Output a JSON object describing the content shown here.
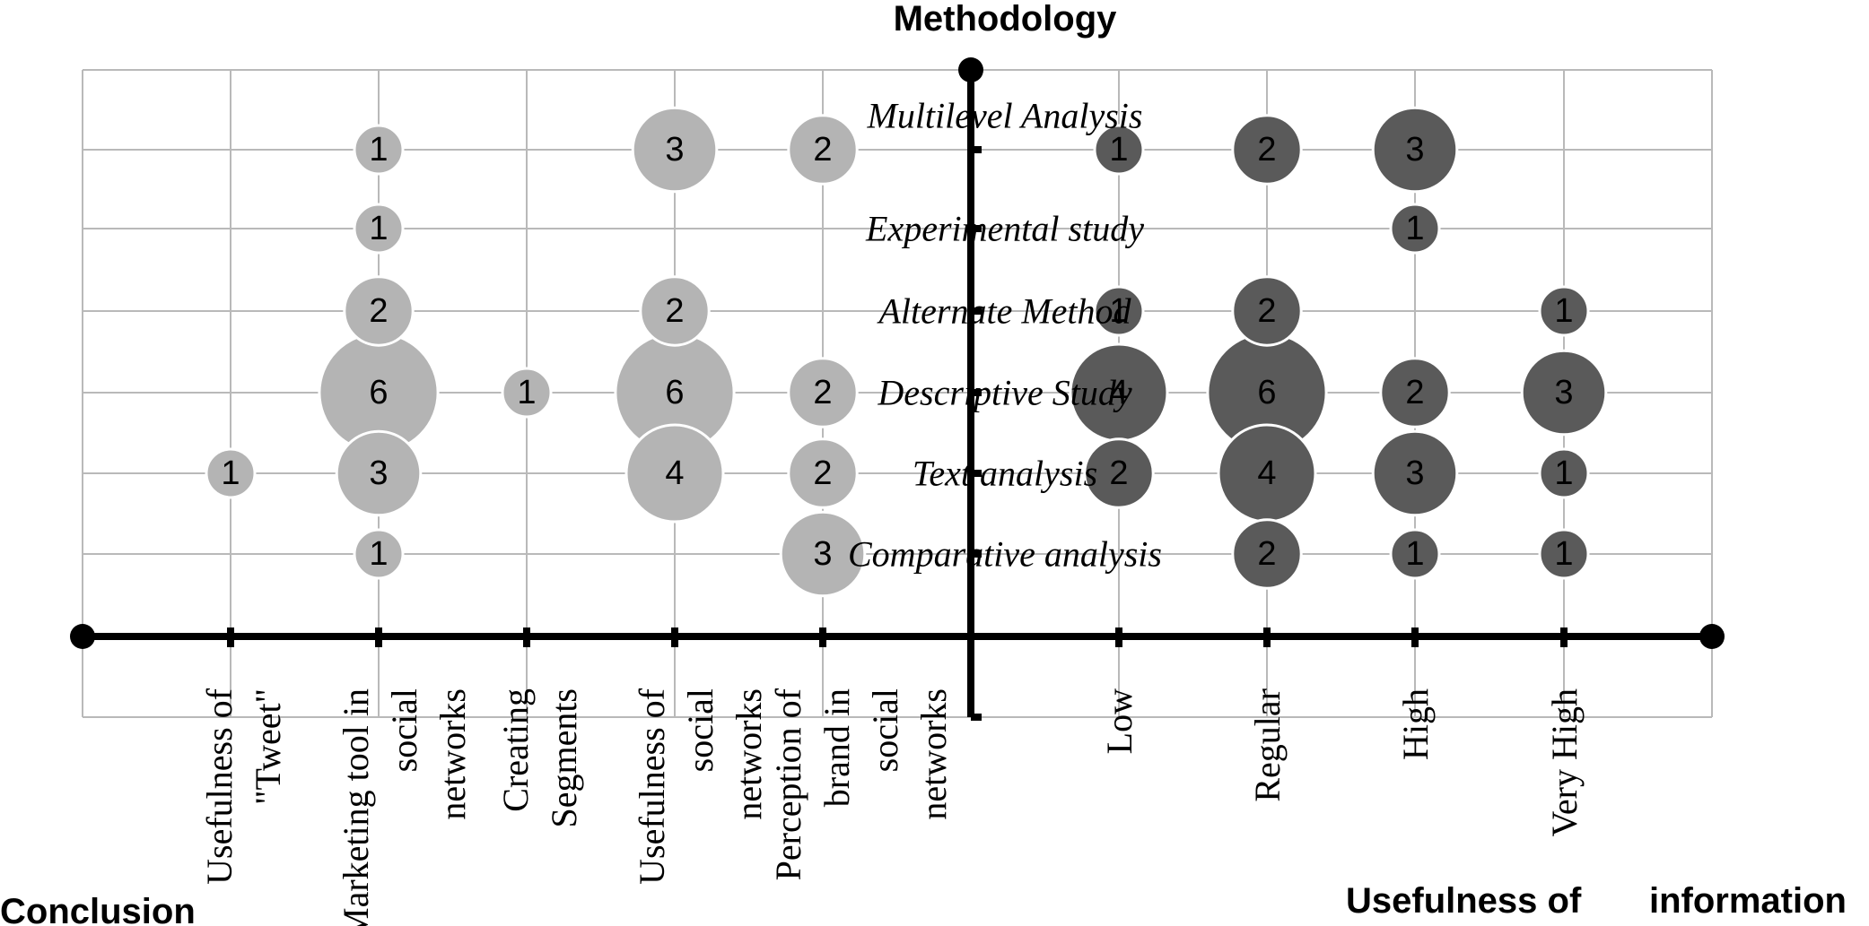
{
  "chart_data": {
    "type": "scatter",
    "subtype": "bubble",
    "title": "",
    "axis_titles": {
      "top": "Methodology",
      "left": "Conclusion",
      "right_a": "Usefulness of",
      "right_b": "information"
    },
    "methodologies": [
      "Multilevel Analysis",
      "Experimental study",
      "Alternate Method",
      "Descriptive Study",
      "Text analysis",
      "Comparative analysis"
    ],
    "conclusion_categories": [
      [
        "Usefulness of",
        "\"Tweet\""
      ],
      [
        "Marketing tool in",
        "social",
        "networks"
      ],
      [
        "Creating",
        "Segments"
      ],
      [
        "Usefulness of",
        "social",
        "networks"
      ],
      [
        "Perception of",
        "brand in",
        "social",
        "networks"
      ]
    ],
    "usefulness_categories": [
      "Low",
      "Regular",
      "High",
      "Very High"
    ],
    "series": [
      {
        "group": "conclusion",
        "shade": "#b4b4b4",
        "points": [
          {
            "category": "Usefulness of \"Tweet\"",
            "method": "Text analysis",
            "value": 1
          },
          {
            "category": "Marketing tool in social networks",
            "method": "Multilevel Analysis",
            "value": 1
          },
          {
            "category": "Marketing tool in social networks",
            "method": "Experimental study",
            "value": 1
          },
          {
            "category": "Marketing tool in social networks",
            "method": "Descriptive Study",
            "value": 6
          },
          {
            "category": "Marketing tool in social networks",
            "method": "Text analysis",
            "value": 3
          },
          {
            "category": "Marketing tool in social networks",
            "method": "Alternate Method",
            "value": 2
          },
          {
            "category": "Marketing tool in social networks",
            "method": "Comparative analysis",
            "value": 1
          },
          {
            "category": "Creating Segments",
            "method": "Descriptive Study",
            "value": 1
          },
          {
            "category": "Usefulness of social networks",
            "method": "Multilevel Analysis",
            "value": 3
          },
          {
            "category": "Usefulness of social networks",
            "method": "Descriptive Study",
            "value": 6
          },
          {
            "category": "Usefulness of social networks",
            "method": "Text analysis",
            "value": 4
          },
          {
            "category": "Usefulness of social networks",
            "method": "Alternate Method",
            "value": 2
          },
          {
            "category": "Perception of brand in social networks",
            "method": "Multilevel Analysis",
            "value": 2
          },
          {
            "category": "Perception of brand in social networks",
            "method": "Descriptive Study",
            "value": 2
          },
          {
            "category": "Perception of brand in social networks",
            "method": "Text analysis",
            "value": 2
          },
          {
            "category": "Perception of brand in social networks",
            "method": "Comparative analysis",
            "value": 3
          }
        ]
      },
      {
        "group": "usefulness",
        "shade": "#5a5a5a",
        "points": [
          {
            "category": "Low",
            "method": "Multilevel Analysis",
            "value": 1
          },
          {
            "category": "Low",
            "method": "Alternate Method",
            "value": 1
          },
          {
            "category": "Low",
            "method": "Descriptive Study",
            "value": 4
          },
          {
            "category": "Low",
            "method": "Text analysis",
            "value": 2
          },
          {
            "category": "Regular",
            "method": "Multilevel Analysis",
            "value": 2
          },
          {
            "category": "Regular",
            "method": "Descriptive Study",
            "value": 6
          },
          {
            "category": "Regular",
            "method": "Text analysis",
            "value": 4
          },
          {
            "category": "Regular",
            "method": "Alternate Method",
            "value": 2
          },
          {
            "category": "Regular",
            "method": "Comparative analysis",
            "value": 2
          },
          {
            "category": "High",
            "method": "Multilevel Analysis",
            "value": 3
          },
          {
            "category": "High",
            "method": "Experimental study",
            "value": 1
          },
          {
            "category": "High",
            "method": "Descriptive Study",
            "value": 2
          },
          {
            "category": "High",
            "method": "Text analysis",
            "value": 3
          },
          {
            "category": "High",
            "method": "Comparative analysis",
            "value": 1
          },
          {
            "category": "Very High",
            "method": "Alternate Method",
            "value": 1
          },
          {
            "category": "Very High",
            "method": "Descriptive Study",
            "value": 3
          },
          {
            "category": "Very High",
            "method": "Text analysis",
            "value": 1
          },
          {
            "category": "Very High",
            "method": "Comparative analysis",
            "value": 1
          }
        ]
      }
    ],
    "grid": true,
    "legend": "none"
  }
}
